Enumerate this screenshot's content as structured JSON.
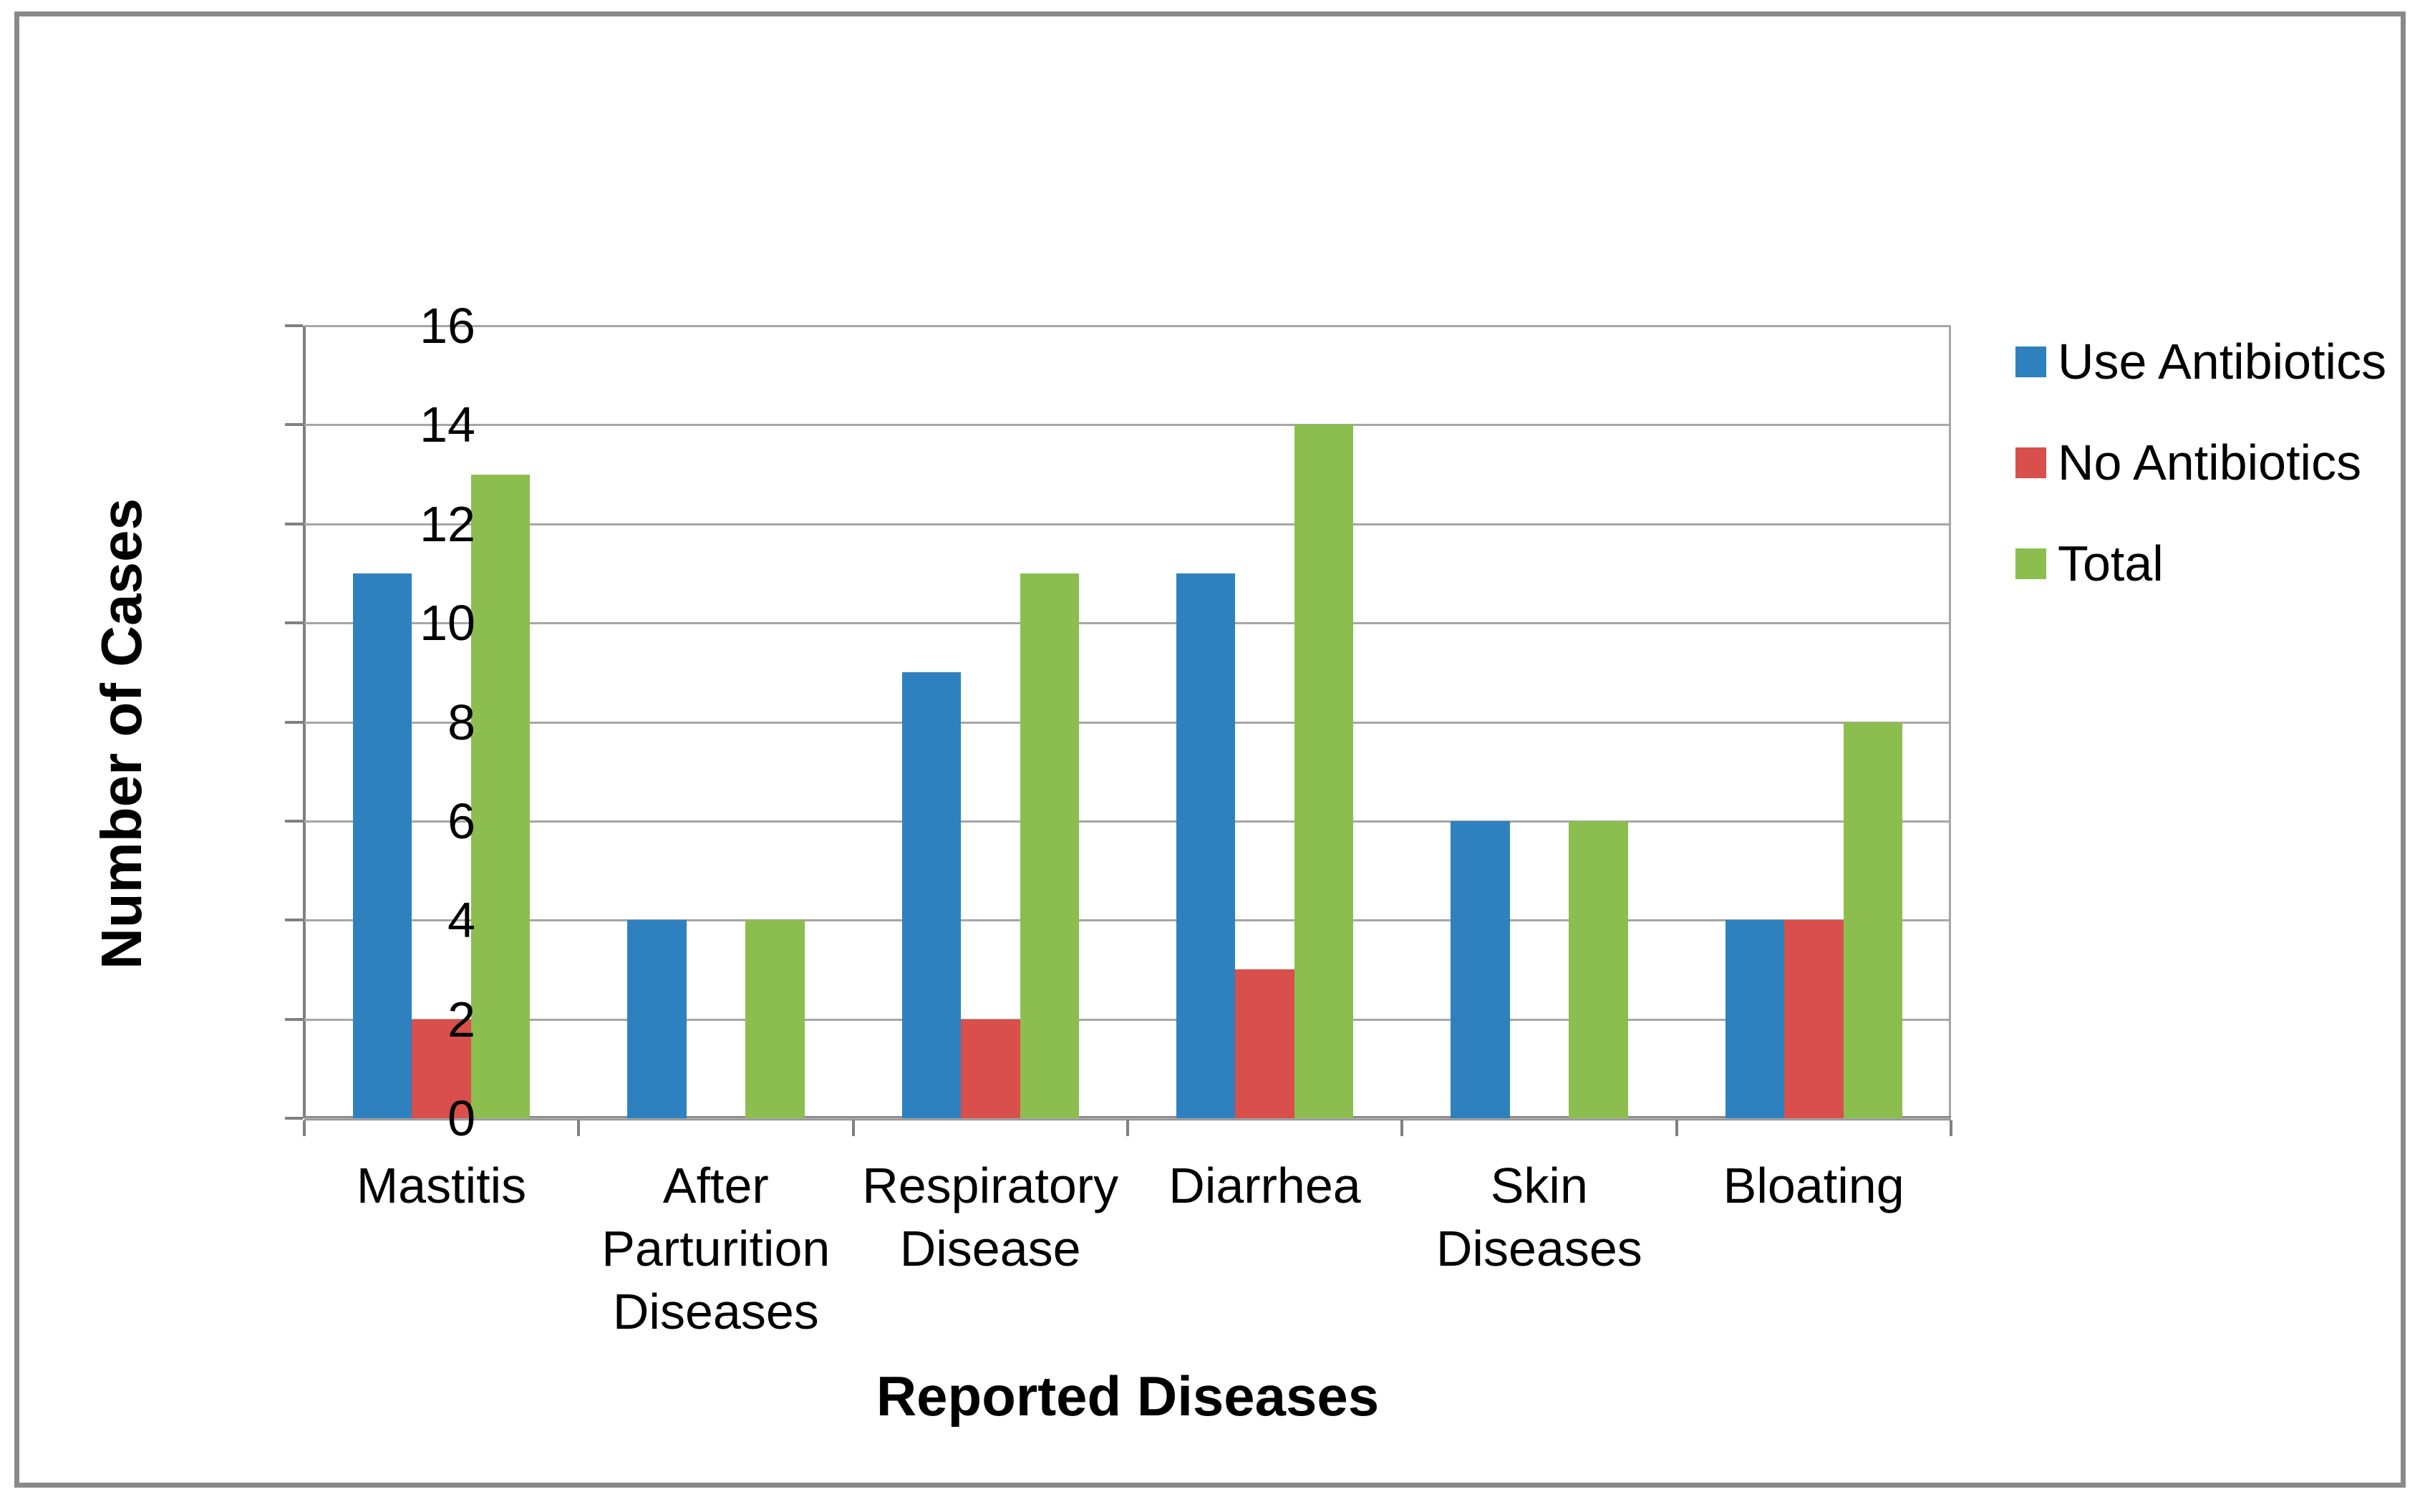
{
  "chart_data": {
    "type": "bar",
    "title": "",
    "categories": [
      "Mastitis",
      "After Parturition Diseases",
      "Respiratory Disease",
      "Diarrhea",
      "Skin Diseases",
      "Bloating"
    ],
    "series": [
      {
        "name": "Use Antibiotics",
        "color": "#2E81BE",
        "values": [
          11,
          4,
          9,
          11,
          6,
          4
        ]
      },
      {
        "name": "No Antibiotics",
        "color": "#D84F4B",
        "values": [
          2,
          0,
          2,
          3,
          0,
          4
        ]
      },
      {
        "name": "Total",
        "color": "#8CBE4F",
        "values": [
          13,
          4,
          11,
          14,
          6,
          8
        ]
      }
    ],
    "xlabel": "Reported Diseases",
    "ylabel": "Number of Cases",
    "ylim": [
      0,
      16
    ],
    "ytick_step": 2,
    "yticks": [
      0,
      2,
      4,
      6,
      8,
      10,
      12,
      14,
      16
    ],
    "grid": true,
    "legend_position": "right"
  },
  "colors": {
    "background": "#FFFFFF",
    "frame_border": "#898989",
    "gridline": "#A6A6A6",
    "axis": "#808080",
    "text": "#000000"
  }
}
